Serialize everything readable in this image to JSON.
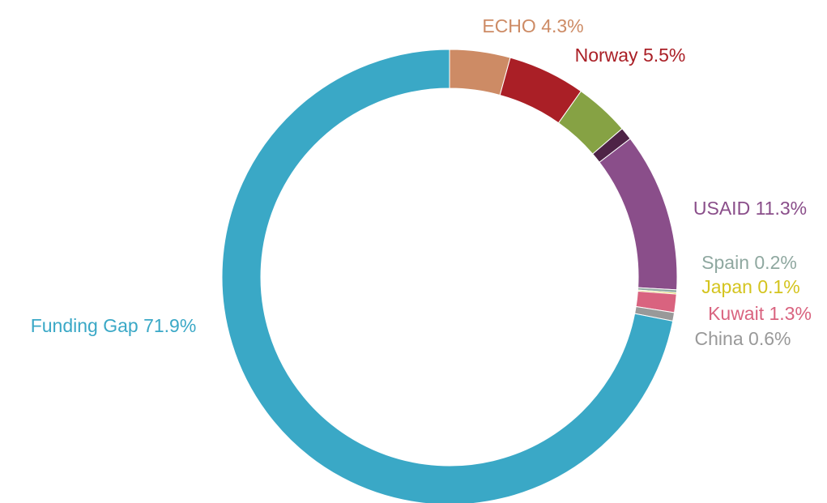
{
  "chart_data": {
    "type": "donut",
    "categories": [
      "ECHO",
      "Norway",
      null,
      null,
      "USAID",
      "Spain",
      "Japan",
      "Kuwait",
      "China",
      "Funding Gap"
    ],
    "values": [
      4.3,
      5.5,
      3.9,
      0.9,
      11.3,
      0.2,
      0.1,
      1.3,
      0.6,
      71.9
    ],
    "value_labels": [
      "4.3%",
      "5.5%",
      null,
      null,
      "11.3%",
      "0.2%",
      "0.1%",
      "1.3%",
      "0.6%",
      "71.9%"
    ],
    "colors": [
      "#cd8b65",
      "#aa1f26",
      "#86a244",
      "#4e2346",
      "#8a4e8a",
      "#8fa8a0",
      "#d4c41e",
      "#d9637f",
      "#999999",
      "#3aa8c6"
    ]
  }
}
